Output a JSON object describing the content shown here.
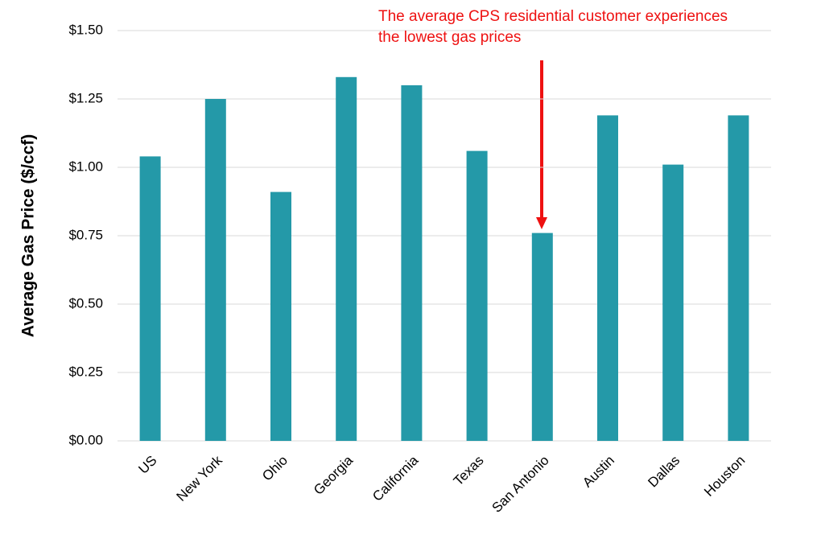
{
  "chart_data": {
    "type": "bar",
    "ylabel": "Average Gas Price ($/ccf)",
    "annotation": [
      "The average CPS residential customer experiences",
      "the lowest gas prices"
    ],
    "annotation_color": "#ee1111",
    "categories": [
      "US",
      "New York",
      "Ohio",
      "Georgia",
      "California",
      "Texas",
      "San Antonio",
      "Austin",
      "Dallas",
      "Houston"
    ],
    "values": [
      1.04,
      1.25,
      0.91,
      1.33,
      1.3,
      1.06,
      0.76,
      1.19,
      1.01,
      1.19
    ],
    "color": "#2499a8",
    "ylim": [
      0,
      1.5
    ],
    "yticks": [
      {
        "value": 0,
        "label": "$0.00"
      },
      {
        "value": 0.25,
        "label": "$0.25"
      },
      {
        "value": 0.5,
        "label": "$0.50"
      },
      {
        "value": 0.75,
        "label": "$0.75"
      },
      {
        "value": 1,
        "label": "$1.00"
      },
      {
        "value": 1.25,
        "label": "$1.25"
      },
      {
        "value": 1.5,
        "label": "$1.50"
      }
    ],
    "grid": true
  }
}
